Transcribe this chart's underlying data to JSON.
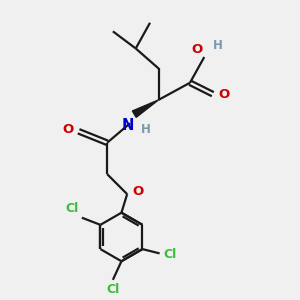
{
  "bg_color": "#f0f0f0",
  "bond_color": "#1a1a1a",
  "cl_color": "#3dbb3d",
  "o_color": "#cc0000",
  "n_color": "#0000cc",
  "h_color": "#7a9aaa",
  "line_width": 1.6,
  "figsize": [
    3.0,
    3.0
  ],
  "dpi": 100,
  "xlim": [
    0,
    10
  ],
  "ylim": [
    0,
    10
  ]
}
